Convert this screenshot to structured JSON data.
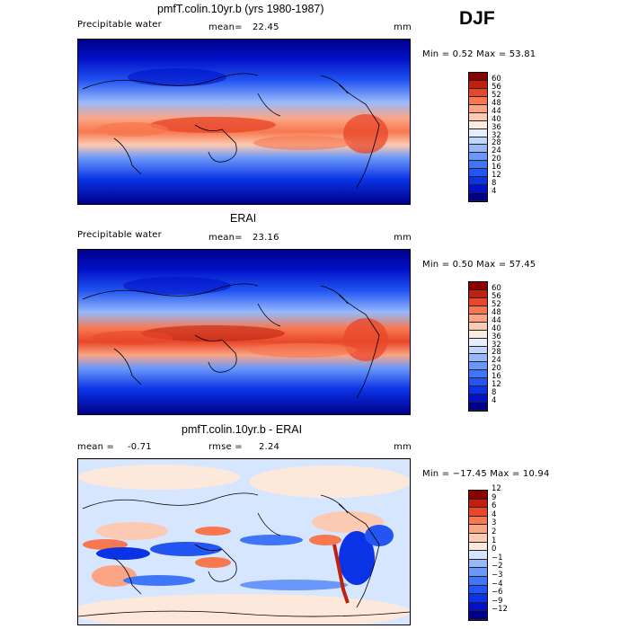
{
  "season": "DJF",
  "chart_data": [
    {
      "type": "heatmap",
      "title": "pmfT.colin.10yr.b (yrs 1980-1987)",
      "variable": "Precipitable water",
      "mean_label": "mean=",
      "mean_value": "22.45",
      "units": "mm",
      "min_max": "Min =    0.52  Max =   53.81",
      "levels": [
        4,
        8,
        12,
        16,
        20,
        24,
        28,
        32,
        36,
        40,
        44,
        48,
        52,
        56,
        60
      ],
      "colors": [
        "#00008b",
        "#0011c8",
        "#0a33e6",
        "#2255f2",
        "#3f75f7",
        "#6a98fa",
        "#97b9fc",
        "#c0d6fd",
        "#e6eefe",
        "#fdeae0",
        "#fccab2",
        "#fba585",
        "#f7774f",
        "#e8472a",
        "#c0210f",
        "#8b0000"
      ]
    },
    {
      "type": "heatmap",
      "title": "ERAI",
      "variable": "Precipitable water",
      "mean_label": "mean=",
      "mean_value": "23.16",
      "units": "mm",
      "min_max": "Min =    0.50  Max =   57.45",
      "levels": [
        4,
        8,
        12,
        16,
        20,
        24,
        28,
        32,
        36,
        40,
        44,
        48,
        52,
        56,
        60
      ],
      "colors": [
        "#00008b",
        "#0011c8",
        "#0a33e6",
        "#2255f2",
        "#3f75f7",
        "#6a98fa",
        "#97b9fc",
        "#c0d6fd",
        "#e6eefe",
        "#fdeae0",
        "#fccab2",
        "#fba585",
        "#f7774f",
        "#e8472a",
        "#c0210f",
        "#8b0000"
      ]
    },
    {
      "type": "heatmap",
      "title": "pmfT.colin.10yr.b - ERAI",
      "mean_label": "mean =",
      "mean_value": "-0.71",
      "rmse_label": "rmse =",
      "rmse_value": "2.24",
      "units": "mm",
      "min_max": "Min = −17.45  Max =   10.94",
      "levels": [
        "−12",
        "−9",
        "−6",
        "−4",
        "−3",
        "−2",
        "−1",
        "0",
        "1",
        "2",
        "3",
        "4",
        "6",
        "9",
        "12"
      ],
      "colors": [
        "#00008b",
        "#0011c8",
        "#0a33e6",
        "#2255f2",
        "#3f75f7",
        "#6a98fa",
        "#97b9fc",
        "#d6e6fe",
        "#fde9dc",
        "#fccab2",
        "#fba585",
        "#f7774f",
        "#e8472a",
        "#c0210f",
        "#8b0000"
      ]
    }
  ]
}
